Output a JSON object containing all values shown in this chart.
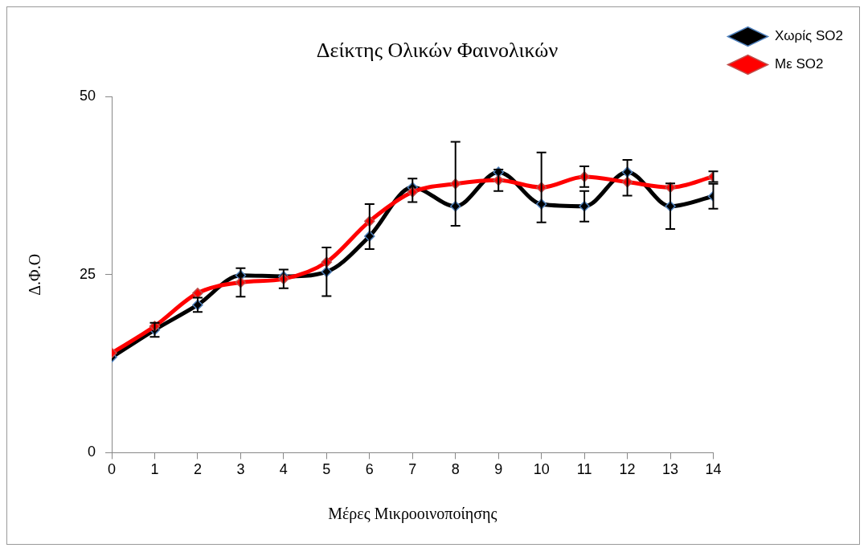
{
  "chart_data": {
    "type": "line",
    "title": "Δείκτης Ολικών Φαινολικών",
    "xlabel": "Μέρες Μικροοινοποίησης",
    "ylabel": "Δ.Φ.Ο",
    "x": [
      0,
      1,
      2,
      3,
      4,
      5,
      6,
      7,
      8,
      9,
      10,
      11,
      12,
      13,
      14
    ],
    "series": [
      {
        "name": "Χωρίς SO2",
        "color": "#000000",
        "values": [
          13.4,
          17.25,
          20.75,
          24.9,
          24.75,
          25.4,
          30.4,
          37.25,
          34.6,
          39.4,
          34.9,
          34.6,
          39.4,
          34.6,
          36
        ],
        "errors": [
          null,
          1,
          1,
          null,
          null,
          3.4,
          null,
          [
            35.2,
            38.5
          ],
          null,
          null,
          null,
          2.15,
          [
            36.1,
            41.1
          ],
          3.2,
          1.75
        ]
      },
      {
        "name": "Με SO2",
        "color": "#ff0000",
        "values": [
          14,
          17.75,
          22.4,
          23.9,
          24.4,
          26.75,
          32.5,
          36.6,
          37.75,
          38.25,
          37.25,
          38.75,
          38,
          37.25,
          38.75
        ],
        "errors": [
          null,
          null,
          null,
          2,
          1.3,
          null,
          [
            28.6,
            34.9
          ],
          null,
          5.9,
          [
            36.75,
            39.75
          ],
          4.9,
          1.45,
          null,
          null,
          0.75
        ]
      }
    ],
    "xlim": [
      0,
      14
    ],
    "xticks": [
      0,
      1,
      2,
      3,
      4,
      5,
      6,
      7,
      8,
      9,
      10,
      11,
      12,
      13,
      14
    ],
    "ylim": [
      0,
      50
    ],
    "yticks": [
      0,
      25,
      50
    ],
    "grid": false,
    "legend": "top right",
    "marker": "diamond",
    "line_style": "solid"
  }
}
